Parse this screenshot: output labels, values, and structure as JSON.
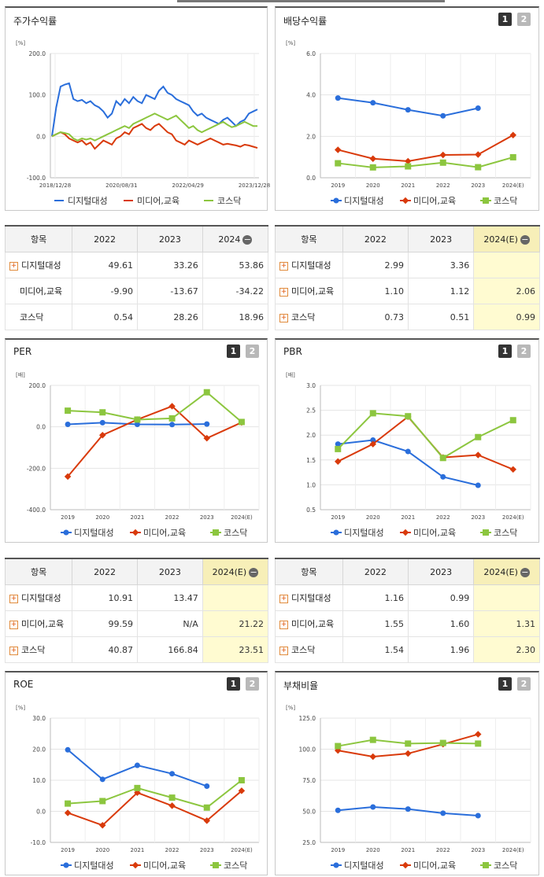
{
  "colors": {
    "digital": "#2a6edb",
    "media": "#d93a0b",
    "kosdaq": "#8cc63f"
  },
  "legend": {
    "digital": "디지털대성",
    "media": "미디어,교육",
    "kosdaq": "코스닥"
  },
  "btn": {
    "one": "1",
    "two": "2"
  },
  "panels": {
    "stock": {
      "title": "주가수익률",
      "unit": "[%]"
    },
    "div": {
      "title": "배당수익률",
      "unit": "[%]"
    },
    "per": {
      "title": "PER",
      "unit": "[배]"
    },
    "pbr": {
      "title": "PBR",
      "unit": "[배]"
    },
    "roe": {
      "title": "ROE",
      "unit": "[%]"
    },
    "debt": {
      "title": "부채비율",
      "unit": "[%]"
    }
  },
  "chart_data": [
    {
      "id": "stock",
      "type": "line",
      "ylim": [
        -100,
        200
      ],
      "yticks": [
        "200.0",
        "100.0",
        "0.0",
        "-100.0"
      ],
      "xticks": [
        "2018/12/28",
        "2020/08/31",
        "2022/04/29",
        "2023/12/28"
      ],
      "series": [
        {
          "name": "디지털대성",
          "values": [
            0,
            70,
            120,
            125,
            128,
            90,
            85,
            88,
            80,
            85,
            75,
            70,
            60,
            45,
            55,
            85,
            75,
            90,
            80,
            95,
            85,
            80,
            100,
            95,
            90,
            110,
            120,
            105,
            100,
            90,
            85,
            80,
            75,
            60,
            50,
            55,
            45,
            40,
            35,
            30,
            40,
            45,
            35,
            25,
            35,
            40,
            55,
            60,
            65
          ]
        },
        {
          "name": "미디어,교육",
          "values": [
            0,
            5,
            10,
            5,
            -5,
            -10,
            -15,
            -10,
            -20,
            -15,
            -30,
            -20,
            -10,
            -15,
            -20,
            -5,
            0,
            10,
            5,
            20,
            25,
            30,
            20,
            15,
            25,
            30,
            20,
            10,
            5,
            -10,
            -15,
            -20,
            -10,
            -15,
            -20,
            -15,
            -10,
            -5,
            -10,
            -15,
            -20,
            -18,
            -20,
            -22,
            -25,
            -20,
            -22,
            -25,
            -28
          ]
        },
        {
          "name": "코스닥",
          "values": [
            0,
            5,
            10,
            8,
            5,
            -5,
            -10,
            -5,
            -8,
            -5,
            -10,
            -5,
            0,
            5,
            10,
            15,
            20,
            25,
            20,
            30,
            35,
            40,
            45,
            50,
            55,
            50,
            45,
            40,
            45,
            50,
            40,
            30,
            20,
            25,
            15,
            10,
            15,
            20,
            25,
            30,
            35,
            28,
            22,
            25,
            30,
            35,
            30,
            25,
            25
          ]
        }
      ]
    },
    {
      "id": "div",
      "type": "line",
      "ylim": [
        0,
        6
      ],
      "yticks": [
        "6.0",
        "4.0",
        "2.0",
        "0.0"
      ],
      "categories": [
        "2019",
        "2020",
        "2021",
        "2022",
        "2023",
        "2024(E)"
      ],
      "series": [
        {
          "name": "디지털대성",
          "values": [
            3.85,
            3.62,
            3.28,
            2.99,
            3.36,
            null
          ]
        },
        {
          "name": "미디어,교육",
          "values": [
            1.35,
            0.92,
            0.8,
            1.1,
            1.12,
            2.06
          ]
        },
        {
          "name": "코스닥",
          "values": [
            0.7,
            0.5,
            0.55,
            0.73,
            0.51,
            0.99
          ]
        }
      ]
    },
    {
      "id": "per",
      "type": "line",
      "ylim": [
        -400,
        200
      ],
      "yticks": [
        "200.0",
        "0.0",
        "-200.0",
        "-400.0"
      ],
      "categories": [
        "2019",
        "2020",
        "2021",
        "2022",
        "2023",
        "2024(E)"
      ],
      "series": [
        {
          "name": "디지털대성",
          "values": [
            12,
            20,
            12,
            10.91,
            13.47,
            null
          ]
        },
        {
          "name": "미디어,교육",
          "values": [
            -240,
            -40,
            35,
            99.59,
            -55,
            21.22
          ]
        },
        {
          "name": "코스닥",
          "values": [
            78,
            70,
            35,
            40.87,
            166.84,
            23.51
          ]
        }
      ]
    },
    {
      "id": "pbr",
      "type": "line",
      "ylim": [
        0.5,
        3
      ],
      "yticks": [
        "3.0",
        "2.5",
        "2.0",
        "1.5",
        "1.0",
        "0.5"
      ],
      "categories": [
        "2019",
        "2020",
        "2021",
        "2022",
        "2023",
        "2024(E)"
      ],
      "series": [
        {
          "name": "디지털대성",
          "values": [
            1.82,
            1.9,
            1.67,
            1.16,
            0.99,
            null
          ]
        },
        {
          "name": "미디어,교육",
          "values": [
            1.47,
            1.82,
            2.37,
            1.55,
            1.6,
            1.31
          ]
        },
        {
          "name": "코스닥",
          "values": [
            1.72,
            2.44,
            2.38,
            1.54,
            1.96,
            2.3
          ]
        }
      ]
    },
    {
      "id": "roe",
      "type": "line",
      "ylim": [
        -10,
        30
      ],
      "yticks": [
        "30.0",
        "20.0",
        "10.0",
        "0.0",
        "-10.0"
      ],
      "categories": [
        "2019",
        "2020",
        "2021",
        "2022",
        "2023",
        "2024(E)"
      ],
      "series": [
        {
          "name": "디지털대성",
          "values": [
            19.8,
            10.3,
            14.8,
            12.1,
            8.1,
            null
          ]
        },
        {
          "name": "미디어,교육",
          "values": [
            -0.5,
            -4.5,
            6,
            1.8,
            -3,
            6.6
          ]
        },
        {
          "name": "코스닥",
          "values": [
            2.5,
            3.3,
            7.5,
            4.4,
            1.2,
            10
          ]
        }
      ]
    },
    {
      "id": "debt",
      "type": "line",
      "ylim": [
        25,
        125
      ],
      "yticks": [
        "125.0",
        "100.0",
        "75.0",
        "50.0",
        "25.0"
      ],
      "categories": [
        "2019",
        "2020",
        "2021",
        "2022",
        "2023",
        "2024(E)"
      ],
      "series": [
        {
          "name": "디지털대성",
          "values": [
            50.8,
            53.5,
            51.8,
            48.5,
            46.5,
            null
          ]
        },
        {
          "name": "미디어,교육",
          "values": [
            99,
            94,
            96.5,
            104,
            112,
            null
          ]
        },
        {
          "name": "코스닥",
          "values": [
            102.5,
            107.5,
            104.5,
            105,
            104.5,
            null
          ]
        }
      ]
    }
  ],
  "tables": {
    "stock": {
      "head": [
        "항목",
        "2022",
        "2023",
        "2024"
      ],
      "rows": [
        {
          "name": "디지털대성",
          "vals": [
            "49.61",
            "33.26",
            "53.86"
          ],
          "plus": true
        },
        {
          "name": "미디어,교육",
          "vals": [
            "-9.90",
            "-13.67",
            "-34.22"
          ],
          "plus": false
        },
        {
          "name": "코스닥",
          "vals": [
            "0.54",
            "28.26",
            "18.96"
          ],
          "plus": false
        }
      ]
    },
    "div": {
      "head": [
        "항목",
        "2022",
        "2023",
        "2024(E)"
      ],
      "rows": [
        {
          "name": "디지털대성",
          "vals": [
            "2.99",
            "3.36",
            ""
          ],
          "plus": true
        },
        {
          "name": "미디어,교육",
          "vals": [
            "1.10",
            "1.12",
            "2.06"
          ],
          "plus": true
        },
        {
          "name": "코스닥",
          "vals": [
            "0.73",
            "0.51",
            "0.99"
          ],
          "plus": true
        }
      ]
    },
    "per": {
      "head": [
        "항목",
        "2022",
        "2023",
        "2024(E)"
      ],
      "rows": [
        {
          "name": "디지털대성",
          "vals": [
            "10.91",
            "13.47",
            ""
          ],
          "plus": true
        },
        {
          "name": "미디어,교육",
          "vals": [
            "99.59",
            "N/A",
            "21.22"
          ],
          "plus": true
        },
        {
          "name": "코스닥",
          "vals": [
            "40.87",
            "166.84",
            "23.51"
          ],
          "plus": true
        }
      ]
    },
    "pbr": {
      "head": [
        "항목",
        "2022",
        "2023",
        "2024(E)"
      ],
      "rows": [
        {
          "name": "디지털대성",
          "vals": [
            "1.16",
            "0.99",
            ""
          ],
          "plus": true
        },
        {
          "name": "미디어,교육",
          "vals": [
            "1.55",
            "1.60",
            "1.31"
          ],
          "plus": true
        },
        {
          "name": "코스닥",
          "vals": [
            "1.54",
            "1.96",
            "2.30"
          ],
          "plus": true
        }
      ]
    }
  }
}
